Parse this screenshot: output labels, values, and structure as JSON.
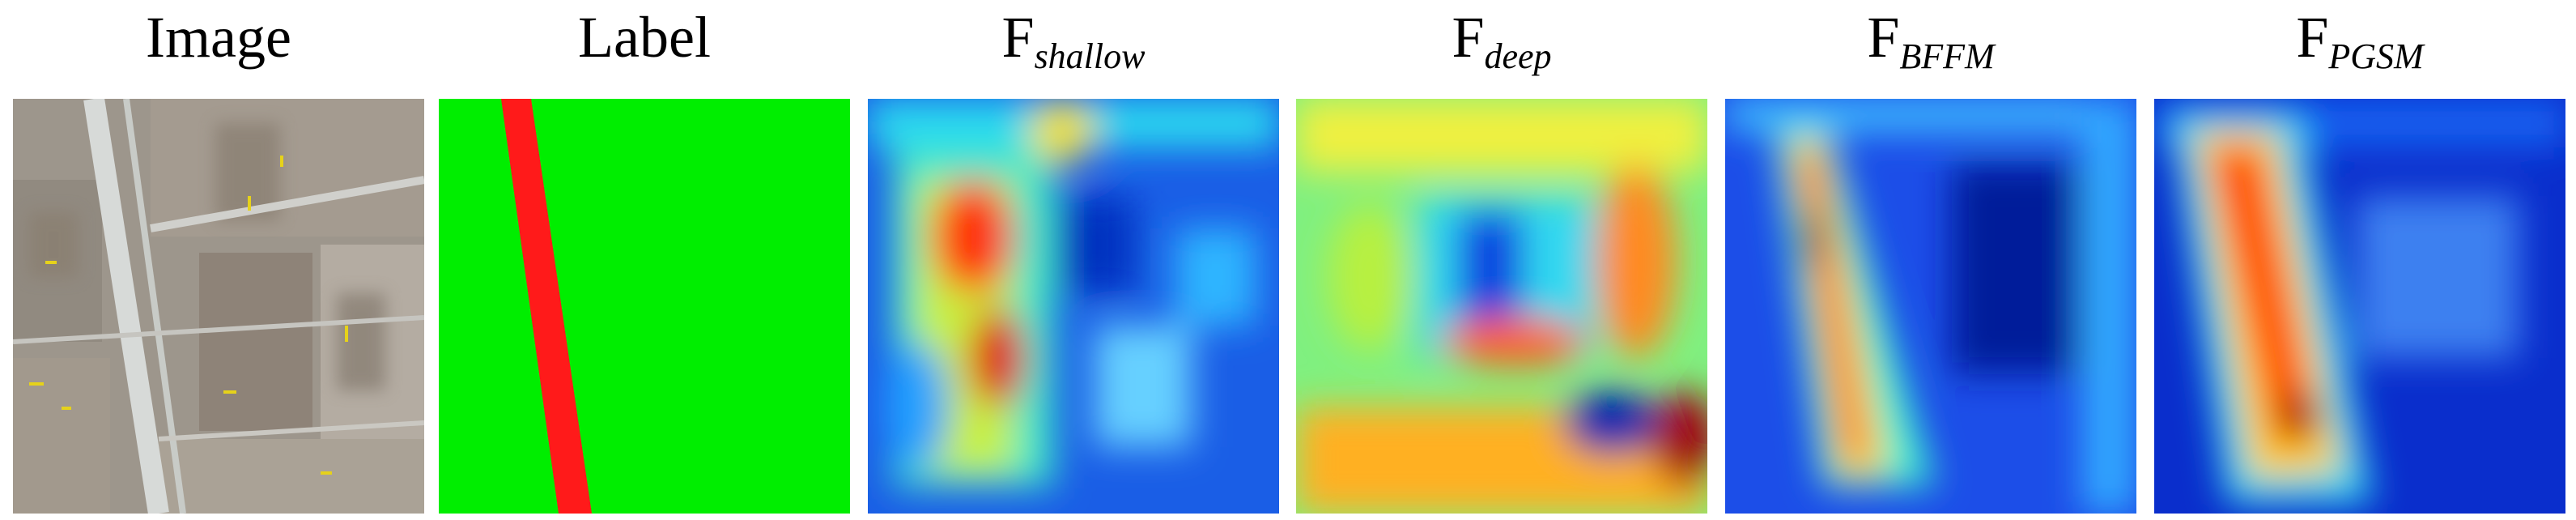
{
  "panels": [
    {
      "title": "Image"
    },
    {
      "title": "Label"
    },
    {
      "title": "F",
      "subscript": "shallow"
    },
    {
      "title": "F",
      "subscript": "deep"
    },
    {
      "title": "F",
      "subscript": "BFFM"
    },
    {
      "title": "F",
      "subscript": "PGSM"
    }
  ]
}
